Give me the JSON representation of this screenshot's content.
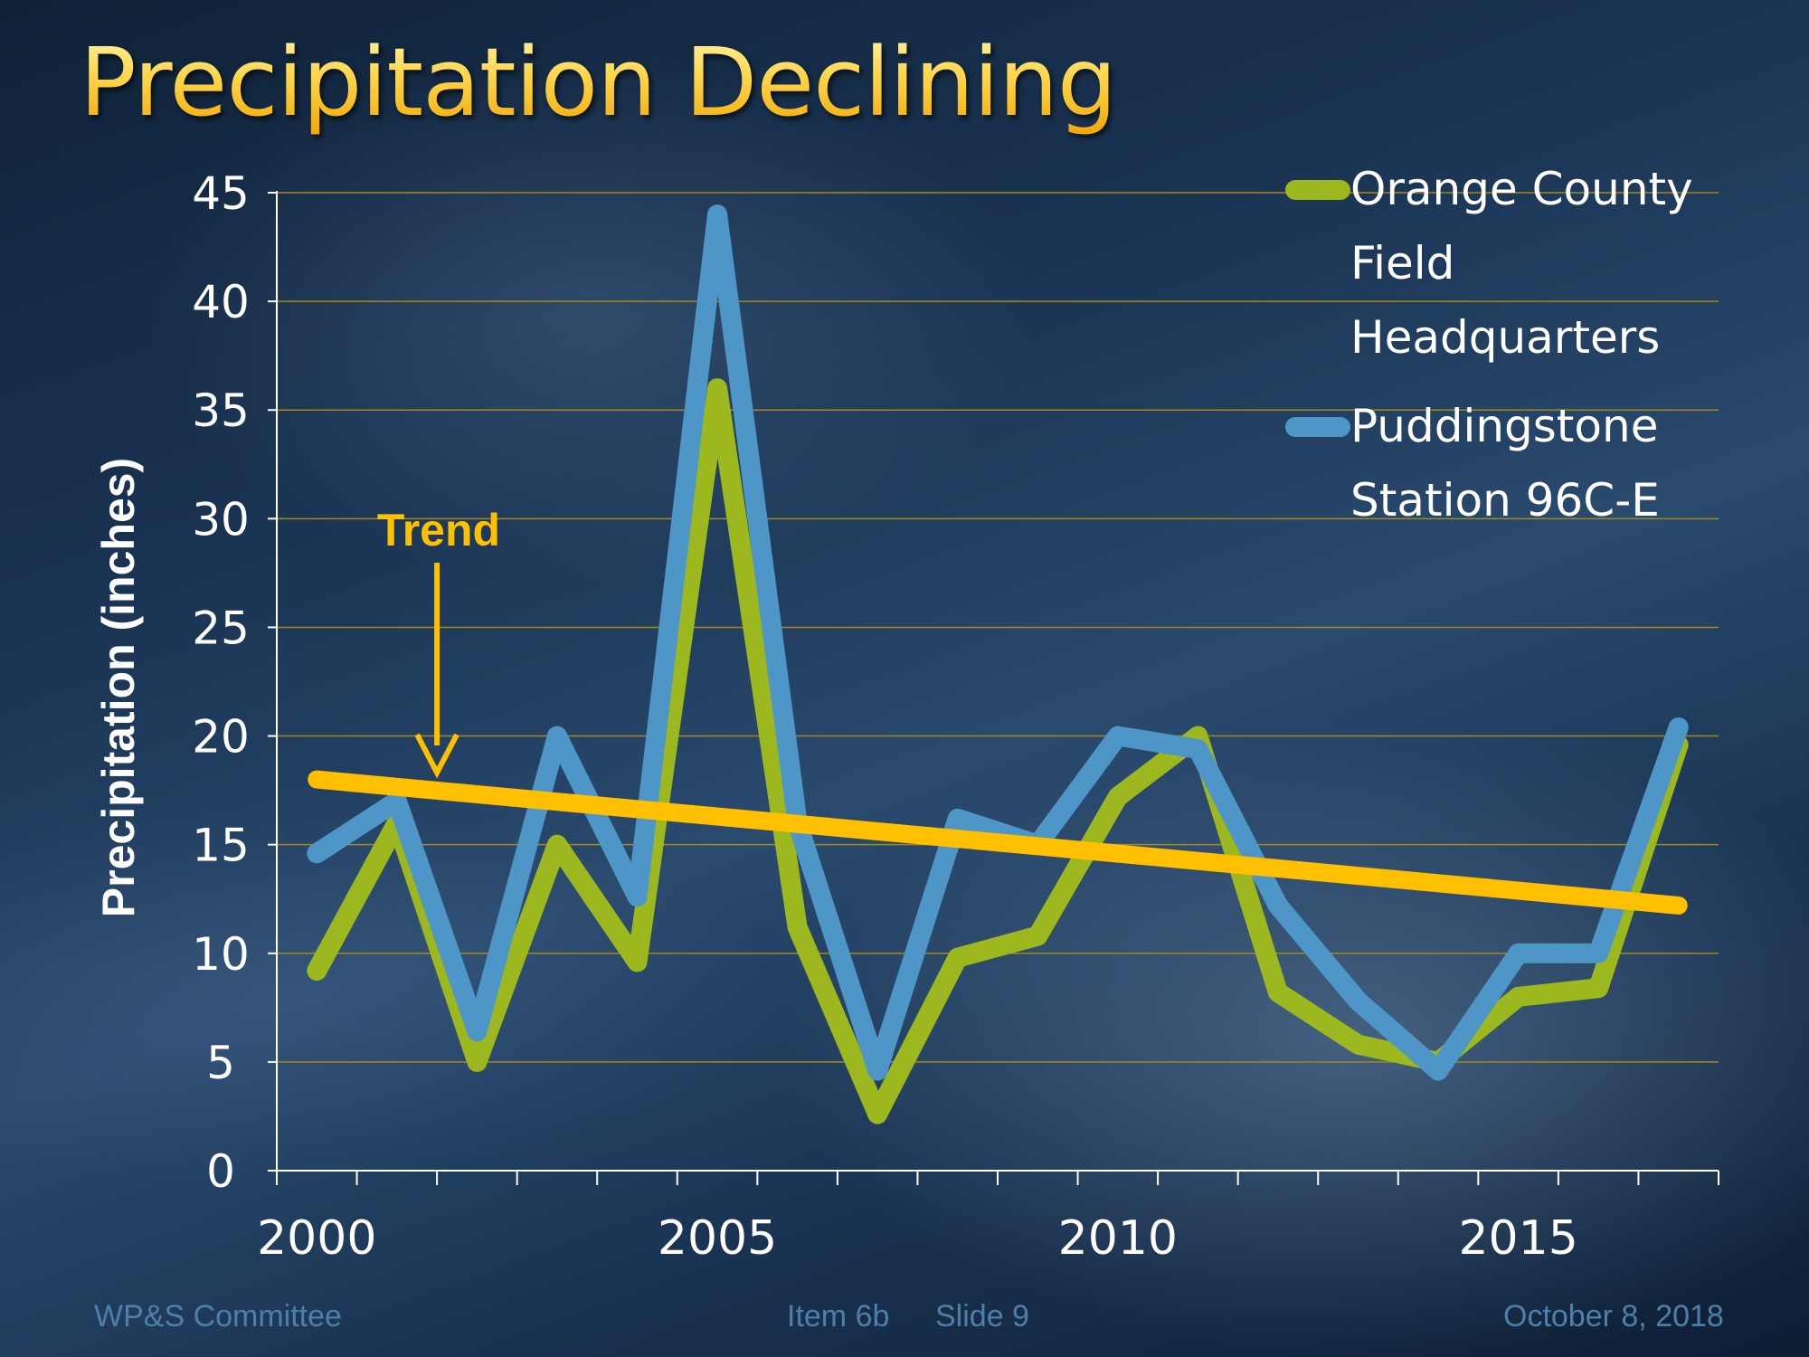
{
  "slide": {
    "title": "Precipitation Declining",
    "footer_left": "WP&S Committee",
    "footer_item": "Item 6b",
    "footer_slide": "Slide 9",
    "footer_date": "October 8, 2018"
  },
  "colors": {
    "orange_county": "#9cb81e",
    "puddingstone": "#4d96c7",
    "trend": "#ffc000",
    "grid": "#a08a1a"
  },
  "chart_data": {
    "type": "line",
    "title": "Precipitation Declining",
    "xlabel": "",
    "ylabel": "Precipitation (inches)",
    "ylim": [
      0,
      45
    ],
    "xlim": [
      2000,
      2018
    ],
    "x_ticks": [
      2000,
      2005,
      2010,
      2015
    ],
    "y_ticks": [
      0,
      5,
      10,
      15,
      20,
      25,
      30,
      35,
      40,
      45
    ],
    "x": [
      2000,
      2001,
      2002,
      2003,
      2004,
      2005,
      2006,
      2007,
      2008,
      2009,
      2010,
      2011,
      2012,
      2013,
      2014,
      2015,
      2016,
      2017
    ],
    "series": [
      {
        "name": "Orange County Field Headquarters",
        "legend_lines": [
          "Orange County",
          "Field",
          "Headquarters"
        ],
        "values": [
          9.2,
          16.0,
          5.0,
          15.0,
          9.6,
          36.0,
          11.2,
          2.6,
          9.8,
          10.8,
          17.2,
          20.0,
          8.2,
          5.8,
          5.0,
          8.0,
          8.4,
          19.6
        ]
      },
      {
        "name": "Puddingstone Station 96C-E",
        "legend_lines": [
          "Puddingstone",
          "Station 96C-E"
        ],
        "values": [
          14.6,
          17.0,
          6.4,
          20.0,
          12.6,
          44.0,
          16.0,
          4.6,
          16.2,
          15.0,
          20.0,
          19.4,
          12.2,
          7.8,
          4.6,
          10.0,
          10.0,
          20.4
        ]
      }
    ],
    "trend": {
      "label": "Trend",
      "x": [
        2000,
        2017
      ],
      "values": [
        18.0,
        12.2
      ]
    },
    "annotation": {
      "text": "Trend",
      "arrow_to_x": 2001.5,
      "arrow_to_y": 17.9
    }
  }
}
